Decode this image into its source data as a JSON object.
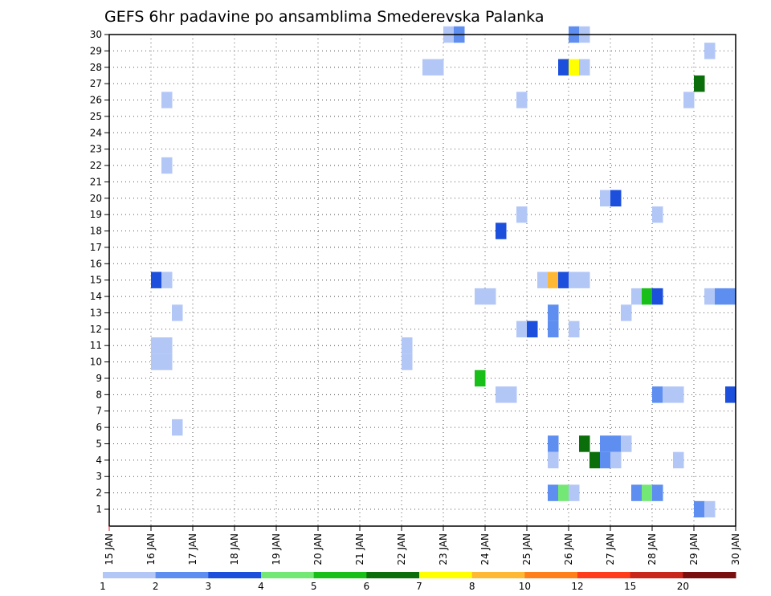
{
  "chart_data": {
    "type": "heatmap",
    "title": "GEFS 6hr padavine po ansamblima Smederevska Palanka",
    "y_member_range": [
      1,
      30
    ],
    "y_ticks": [
      "1",
      "2",
      "3",
      "4",
      "5",
      "6",
      "7",
      "8",
      "9",
      "10",
      "11",
      "12",
      "13",
      "14",
      "15",
      "16",
      "17",
      "18",
      "19",
      "20",
      "21",
      "22",
      "23",
      "24",
      "25",
      "26",
      "27",
      "28",
      "29",
      "30"
    ],
    "x_day_range": [
      15,
      30
    ],
    "x_ticks": [
      "15 JAN",
      "16 JAN",
      "17 JAN",
      "18 JAN",
      "19 JAN",
      "20 JAN",
      "21 JAN",
      "22 JAN",
      "23 JAN",
      "24 JAN",
      "25 JAN",
      "26 JAN",
      "27 JAN",
      "28 JAN",
      "29 JAN",
      "30 JAN"
    ],
    "legend": {
      "labels": [
        "1",
        "2",
        "3",
        "4",
        "5",
        "6",
        "7",
        "8",
        "10",
        "12",
        "15",
        "20"
      ],
      "colors": [
        "#b3c7f7",
        "#5d8ef0",
        "#1b4fdc",
        "#74e874",
        "#18bf18",
        "#0a6e0a",
        "#ffff00",
        "#ffb833",
        "#ff7f1a",
        "#ff3d1a",
        "#c8281b",
        "#7a0f0f"
      ]
    },
    "cells": [
      {
        "member": 30,
        "day": 23.0,
        "cat": 1
      },
      {
        "member": 30,
        "day": 23.25,
        "cat": 2
      },
      {
        "member": 30,
        "day": 26.0,
        "cat": 2
      },
      {
        "member": 30,
        "day": 26.25,
        "cat": 1
      },
      {
        "member": 29,
        "day": 29.25,
        "cat": 1
      },
      {
        "member": 28,
        "day": 22.5,
        "cat": 1
      },
      {
        "member": 28,
        "day": 22.75,
        "cat": 1
      },
      {
        "member": 28,
        "day": 25.75,
        "cat": 3
      },
      {
        "member": 28,
        "day": 26.0,
        "cat": 7
      },
      {
        "member": 28,
        "day": 26.25,
        "cat": 1
      },
      {
        "member": 27,
        "day": 29.0,
        "cat": 6
      },
      {
        "member": 26,
        "day": 16.25,
        "cat": 1
      },
      {
        "member": 26,
        "day": 24.75,
        "cat": 1
      },
      {
        "member": 26,
        "day": 28.75,
        "cat": 1
      },
      {
        "member": 22,
        "day": 16.25,
        "cat": 1
      },
      {
        "member": 20,
        "day": 26.75,
        "cat": 1
      },
      {
        "member": 20,
        "day": 27.0,
        "cat": 3
      },
      {
        "member": 19,
        "day": 24.75,
        "cat": 1
      },
      {
        "member": 19,
        "day": 28.0,
        "cat": 1
      },
      {
        "member": 18,
        "day": 24.25,
        "cat": 3
      },
      {
        "member": 15,
        "day": 16.0,
        "cat": 3
      },
      {
        "member": 15,
        "day": 16.25,
        "cat": 1
      },
      {
        "member": 15,
        "day": 25.25,
        "cat": 1
      },
      {
        "member": 15,
        "day": 25.5,
        "cat": 8
      },
      {
        "member": 15,
        "day": 25.75,
        "cat": 3
      },
      {
        "member": 15,
        "day": 26.0,
        "cat": 1
      },
      {
        "member": 15,
        "day": 26.25,
        "cat": 1
      },
      {
        "member": 14,
        "day": 23.75,
        "cat": 1
      },
      {
        "member": 14,
        "day": 24.0,
        "cat": 1
      },
      {
        "member": 14,
        "day": 27.5,
        "cat": 1
      },
      {
        "member": 14,
        "day": 27.75,
        "cat": 5
      },
      {
        "member": 14,
        "day": 28.0,
        "cat": 3
      },
      {
        "member": 14,
        "day": 29.25,
        "cat": 1
      },
      {
        "member": 14,
        "day": 29.5,
        "cat": 2
      },
      {
        "member": 14,
        "day": 29.75,
        "cat": 2
      },
      {
        "member": 13,
        "day": 16.5,
        "cat": 1
      },
      {
        "member": 13,
        "day": 25.5,
        "cat": 2
      },
      {
        "member": 13,
        "day": 27.25,
        "cat": 1
      },
      {
        "member": 12,
        "day": 24.75,
        "cat": 1
      },
      {
        "member": 12,
        "day": 25.0,
        "cat": 3
      },
      {
        "member": 12,
        "day": 25.5,
        "cat": 2
      },
      {
        "member": 12,
        "day": 26.0,
        "cat": 1
      },
      {
        "member": 11,
        "day": 16.0,
        "cat": 1
      },
      {
        "member": 11,
        "day": 16.25,
        "cat": 1
      },
      {
        "member": 11,
        "day": 22.0,
        "cat": 1
      },
      {
        "member": 10,
        "day": 16.0,
        "cat": 1
      },
      {
        "member": 10,
        "day": 16.25,
        "cat": 1
      },
      {
        "member": 10,
        "day": 22.0,
        "cat": 1
      },
      {
        "member": 9,
        "day": 23.75,
        "cat": 5
      },
      {
        "member": 8,
        "day": 24.25,
        "cat": 1
      },
      {
        "member": 8,
        "day": 24.5,
        "cat": 1
      },
      {
        "member": 8,
        "day": 28.0,
        "cat": 2
      },
      {
        "member": 8,
        "day": 28.25,
        "cat": 1
      },
      {
        "member": 8,
        "day": 28.5,
        "cat": 1
      },
      {
        "member": 8,
        "day": 29.75,
        "cat": 3
      },
      {
        "member": 6,
        "day": 16.5,
        "cat": 1
      },
      {
        "member": 5,
        "day": 25.5,
        "cat": 2
      },
      {
        "member": 5,
        "day": 26.25,
        "cat": 6
      },
      {
        "member": 5,
        "day": 26.75,
        "cat": 2
      },
      {
        "member": 5,
        "day": 27.0,
        "cat": 2
      },
      {
        "member": 5,
        "day": 27.25,
        "cat": 1
      },
      {
        "member": 4,
        "day": 25.5,
        "cat": 1
      },
      {
        "member": 4,
        "day": 26.5,
        "cat": 6
      },
      {
        "member": 4,
        "day": 26.75,
        "cat": 2
      },
      {
        "member": 4,
        "day": 27.0,
        "cat": 1
      },
      {
        "member": 4,
        "day": 28.5,
        "cat": 1
      },
      {
        "member": 2,
        "day": 25.5,
        "cat": 2
      },
      {
        "member": 2,
        "day": 25.75,
        "cat": 4
      },
      {
        "member": 2,
        "day": 26.0,
        "cat": 1
      },
      {
        "member": 2,
        "day": 27.5,
        "cat": 2
      },
      {
        "member": 2,
        "day": 27.75,
        "cat": 4
      },
      {
        "member": 2,
        "day": 28.0,
        "cat": 2
      },
      {
        "member": 1,
        "day": 29.0,
        "cat": 2
      },
      {
        "member": 1,
        "day": 29.25,
        "cat": 1
      }
    ]
  }
}
